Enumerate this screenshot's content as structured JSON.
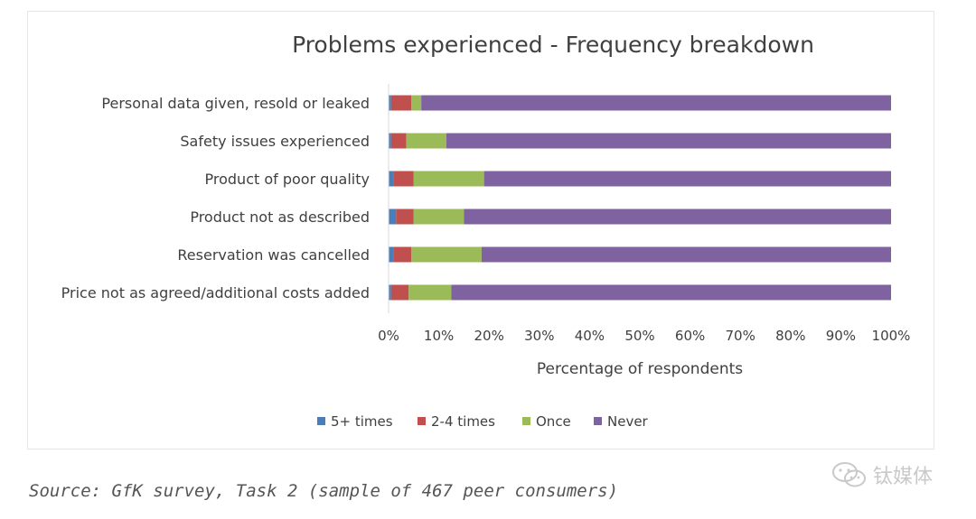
{
  "chart_data": {
    "type": "bar",
    "orientation": "horizontal",
    "stacked": true,
    "title": "Problems experienced - Frequency breakdown",
    "xlabel": "Percentage of respondents",
    "ylabel": "",
    "xlim": [
      0,
      100
    ],
    "xticks": [
      "0%",
      "10%",
      "20%",
      "30%",
      "40%",
      "50%",
      "60%",
      "70%",
      "80%",
      "90%",
      "100%"
    ],
    "categories": [
      "Personal data given, resold or leaked",
      "Safety issues experienced",
      "Product of poor quality",
      "Product not as described",
      "Reservation was cancelled",
      "Price not as agreed/additional costs added"
    ],
    "series": [
      {
        "name": "5+ times",
        "color": "#4a7ebb",
        "values": [
          0.5,
          0.5,
          1,
          1.5,
          1,
          0.5
        ]
      },
      {
        "name": "2-4 times",
        "color": "#c0504d",
        "values": [
          4,
          3,
          4,
          3.5,
          3.5,
          3.5
        ]
      },
      {
        "name": "Once",
        "color": "#9bbb59",
        "values": [
          2,
          8,
          14,
          10,
          14,
          8.5
        ]
      },
      {
        "name": "Never",
        "color": "#7f62a0",
        "values": [
          93.5,
          88.5,
          81,
          85,
          81.5,
          87.5
        ]
      }
    ],
    "legend_position": "bottom",
    "grid": false
  },
  "source_text": "Source: GfK survey, Task 2 (sample of 467 peer consumers)",
  "watermark_text": "钛媒体",
  "watermark_icon": "wechat-icon"
}
